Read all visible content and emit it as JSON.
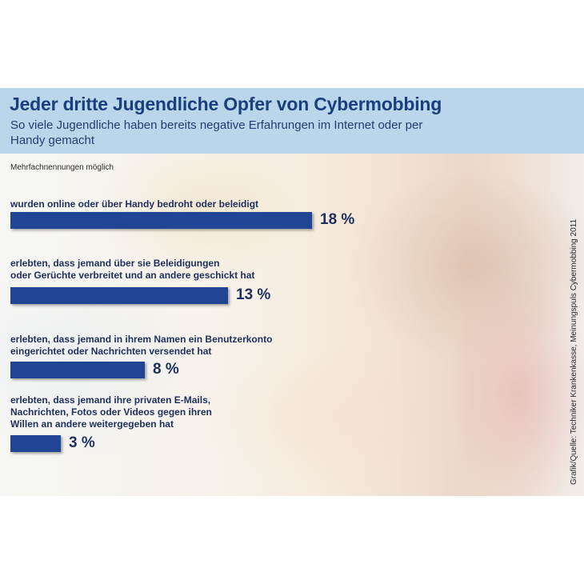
{
  "chart_data": {
    "type": "bar",
    "orientation": "horizontal",
    "title": "Jeder dritte Jugendliche Opfer von Cybermobbing",
    "subtitle": "So viele Jugendliche haben bereits negative Erfahrungen im Internet oder per Handy gemacht",
    "note": "Mehrfachnennungen möglich",
    "source": "Grafik/Quelle: Techniker Krankenkasse, Meinungspuls Cybermobbing 2011",
    "categories": [
      [
        "wurden online oder über Handy bedroht oder beleidigt"
      ],
      [
        "erlebten, dass jemand über sie Beleidigungen",
        "oder Gerüchte verbreitet und an andere geschickt hat"
      ],
      [
        "erlebten, dass jemand in ihrem Namen ein Benutzerkonto",
        "eingerichtet oder Nachrichten versendet hat"
      ],
      [
        "erlebten, dass jemand ihre privaten E-Mails,",
        "Nachrichten, Fotos oder Videos gegen ihren",
        "Willen an andere weitergegeben hat"
      ]
    ],
    "values": [
      18,
      13,
      8,
      3
    ],
    "value_labels": [
      "18 %",
      "13 %",
      "8 %",
      "3 %"
    ],
    "unit": "%",
    "xlim": [
      0,
      18
    ],
    "bar_color": "#1f4594",
    "header_color": "#b9d6ea"
  }
}
